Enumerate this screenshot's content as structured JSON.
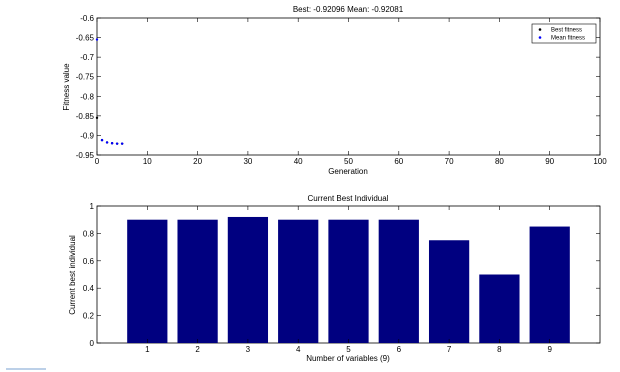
{
  "chart_data": [
    {
      "type": "scatter",
      "title": "Best: -0.92096 Mean: -0.92081",
      "xlabel": "Generation",
      "ylabel": "Fitness value",
      "xlim": [
        0,
        100
      ],
      "ylim": [
        -0.95,
        -0.6
      ],
      "xticks": [
        "0",
        "10",
        "20",
        "30",
        "40",
        "50",
        "60",
        "70",
        "80",
        "90",
        "100"
      ],
      "yticks": [
        "-0.6",
        "-0.65",
        "-0.7",
        "-0.75",
        "-0.8",
        "-0.85",
        "-0.9",
        "-0.95"
      ],
      "legend_position": "top-right",
      "series": [
        {
          "name": "Best fitness",
          "color": "#000000",
          "points": [
            [
              0,
              -0.855
            ],
            [
              1,
              -0.912
            ],
            [
              2,
              -0.918
            ],
            [
              3,
              -0.92
            ],
            [
              4,
              -0.921
            ],
            [
              5,
              -0.921
            ]
          ]
        },
        {
          "name": "Mean fitness",
          "color": "#0000ff",
          "points": [
            [
              0,
              -0.655
            ],
            [
              1,
              -0.912
            ],
            [
              2,
              -0.918
            ],
            [
              3,
              -0.92
            ],
            [
              4,
              -0.921
            ],
            [
              5,
              -0.921
            ]
          ]
        }
      ]
    },
    {
      "type": "bar",
      "title": "Current Best Individual",
      "xlabel": "Number of variables (9)",
      "ylabel": "Current best individual",
      "ylim": [
        0,
        1
      ],
      "categories": [
        "1",
        "2",
        "3",
        "4",
        "5",
        "6",
        "7",
        "8",
        "9"
      ],
      "yticks": [
        "0",
        "0.2",
        "0.4",
        "0.6",
        "0.8",
        "1"
      ],
      "values": [
        0.9,
        0.9,
        0.92,
        0.9,
        0.9,
        0.9,
        0.75,
        0.5,
        0.85
      ],
      "bar_color": "#000080"
    }
  ]
}
